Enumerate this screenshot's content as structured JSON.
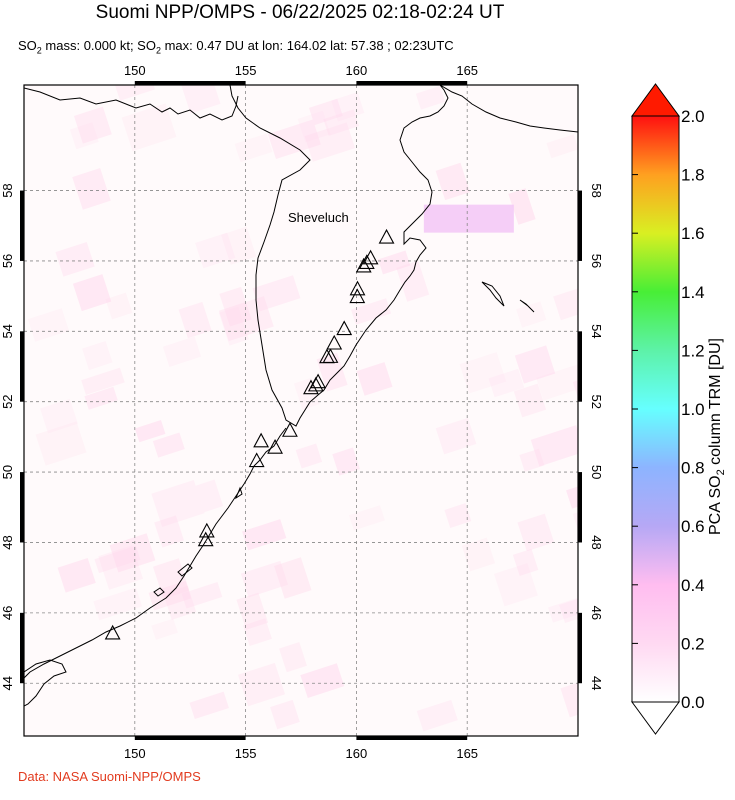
{
  "title": "Suomi NPP/OMPS - 06/22/2025 02:18-02:24 UT",
  "subtitle_parts": {
    "mass_prefix": "SO",
    "mass_sub": "2",
    "mass_text": " mass: 0.000 kt; SO",
    "max_sub": "2",
    "max_text": " max: 0.47 DU at lon: 164.02 lat: 57.38 ; 02:23UTC"
  },
  "credit": "Data: NASA Suomi-NPP/OMPS",
  "map": {
    "lon_range": [
      145,
      170
    ],
    "lat_range": [
      42.5,
      61
    ],
    "lon_ticks": [
      150,
      155,
      160,
      165
    ],
    "lat_ticks": [
      44,
      46,
      48,
      50,
      52,
      54,
      56,
      58
    ],
    "volcano_label": "Sheveluch",
    "volcanoes": [
      [
        161.36,
        56.65
      ],
      [
        160.64,
        56.06
      ],
      [
        160.47,
        55.93
      ],
      [
        160.33,
        55.83
      ],
      [
        160.05,
        55.18
      ],
      [
        160.04,
        54.96
      ],
      [
        159.45,
        54.05
      ],
      [
        159.0,
        53.64
      ],
      [
        158.83,
        53.26
      ],
      [
        158.67,
        53.25
      ],
      [
        158.27,
        52.54
      ],
      [
        158.17,
        52.45
      ],
      [
        157.95,
        52.37
      ],
      [
        157.0,
        51.16
      ],
      [
        156.33,
        50.68
      ],
      [
        155.7,
        50.86
      ],
      [
        155.5,
        50.3
      ],
      [
        153.25,
        48.3
      ],
      [
        153.2,
        48.05
      ],
      [
        149.0,
        45.4
      ]
    ]
  },
  "colorbar": {
    "label_prefix": "PCA SO",
    "label_sub": "2",
    "label_suffix": " column TRM [DU]",
    "ticks": [
      "0.0",
      "0.2",
      "0.4",
      "0.6",
      "0.8",
      "1.0",
      "1.2",
      "1.4",
      "1.6",
      "1.8",
      "2.0"
    ],
    "min": 0.0,
    "max": 2.0,
    "colors": [
      "#ffffff",
      "#ffc6f0",
      "#b2a8f5",
      "#7fd0ff",
      "#66ffee",
      "#45f07a",
      "#8cf032",
      "#e9ef28",
      "#ffad24",
      "#ff5a1a",
      "#ff0000"
    ]
  }
}
